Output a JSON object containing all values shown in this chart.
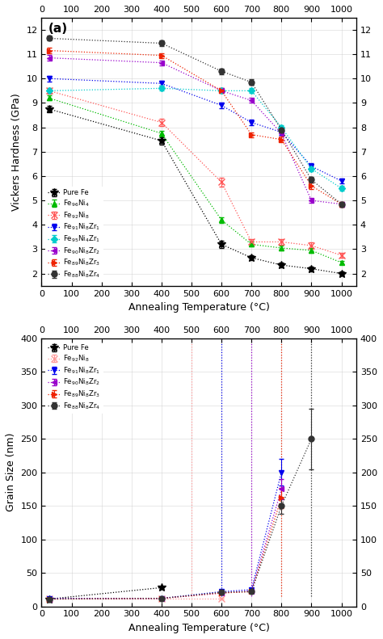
{
  "panel_a": {
    "xlabel": "Annealing Temperature (°C)",
    "ylabel": "Vickers Hardness (GPa)",
    "xlim": [
      0,
      1050
    ],
    "ylim": [
      1.5,
      12.5
    ],
    "xticks": [
      0,
      100,
      200,
      300,
      400,
      500,
      600,
      700,
      800,
      900,
      1000
    ],
    "yticks": [
      2,
      3,
      4,
      5,
      6,
      7,
      8,
      9,
      10,
      11,
      12
    ],
    "series": [
      {
        "label": "Pure Fe",
        "color": "#000000",
        "marker": "*",
        "markersize": 7,
        "x": [
          25,
          400,
          600,
          700,
          800,
          900,
          1000
        ],
        "y": [
          8.75,
          7.45,
          3.2,
          2.65,
          2.35,
          2.2,
          2.0
        ],
        "yerr": [
          0.12,
          0.15,
          0.15,
          0.1,
          0.1,
          0.1,
          0.08
        ]
      },
      {
        "label": "Fe$_{96}$Ni$_4$",
        "color": "#00bb00",
        "marker": "^",
        "markersize": 5,
        "x": [
          25,
          400,
          600,
          700,
          800,
          900,
          1000
        ],
        "y": [
          9.2,
          7.75,
          4.2,
          3.2,
          3.05,
          2.95,
          2.45
        ],
        "yerr": [
          0.1,
          0.12,
          0.12,
          0.1,
          0.1,
          0.1,
          0.08
        ]
      },
      {
        "label": "Fe$_{92}$Ni$_8$",
        "color": "#ff5555",
        "marker": "x",
        "markersize": 6,
        "x": [
          25,
          400,
          600,
          700,
          800,
          900,
          1000
        ],
        "y": [
          9.5,
          8.2,
          5.75,
          3.3,
          3.3,
          3.15,
          2.75
        ],
        "yerr": [
          0.12,
          0.15,
          0.18,
          0.12,
          0.12,
          0.12,
          0.1
        ]
      },
      {
        "label": "Fe$_{91}$Ni$_8$Zr$_1$",
        "color": "#0000ee",
        "marker": "v",
        "markersize": 5,
        "x": [
          25,
          400,
          600,
          700,
          800,
          900,
          1000
        ],
        "y": [
          10.0,
          9.8,
          8.9,
          8.2,
          7.8,
          6.4,
          5.8
        ],
        "yerr": [
          0.12,
          0.1,
          0.12,
          0.12,
          0.12,
          0.12,
          0.1
        ]
      },
      {
        "label": "Fe$_{95}$Ni$_4$Zr$_1$",
        "color": "#00cccc",
        "marker": "D",
        "markersize": 4,
        "x": [
          25,
          400,
          600,
          700,
          800,
          900,
          1000
        ],
        "y": [
          9.5,
          9.6,
          9.5,
          9.5,
          8.0,
          6.3,
          5.5
        ],
        "yerr": [
          0.1,
          0.1,
          0.1,
          0.1,
          0.1,
          0.1,
          0.1
        ]
      },
      {
        "label": "Fe$_{90}$Ni$_8$Zr$_2$",
        "color": "#9900cc",
        "marker": "<",
        "markersize": 5,
        "x": [
          25,
          400,
          600,
          700,
          800,
          900,
          1000
        ],
        "y": [
          10.85,
          10.65,
          9.5,
          9.1,
          7.75,
          5.0,
          4.85
        ],
        "yerr": [
          0.12,
          0.1,
          0.1,
          0.1,
          0.12,
          0.1,
          0.1
        ]
      },
      {
        "label": "Fe$_{89}$Ni$_8$Zr$_3$",
        "color": "#ee2200",
        "marker": ">",
        "markersize": 5,
        "x": [
          25,
          400,
          600,
          700,
          800,
          900,
          1000
        ],
        "y": [
          11.15,
          10.95,
          9.5,
          7.7,
          7.5,
          5.6,
          4.85
        ],
        "yerr": [
          0.12,
          0.1,
          0.1,
          0.1,
          0.12,
          0.12,
          0.1
        ]
      },
      {
        "label": "Fe$_{88}$Ni$_8$Zr$_4$",
        "color": "#333333",
        "marker": "o",
        "markersize": 5,
        "x": [
          25,
          400,
          600,
          700,
          800,
          900,
          1000
        ],
        "y": [
          11.65,
          11.45,
          10.3,
          9.85,
          7.9,
          5.85,
          4.85
        ],
        "yerr": [
          0.1,
          0.1,
          0.12,
          0.12,
          0.12,
          0.12,
          0.1
        ]
      }
    ]
  },
  "panel_b": {
    "xlabel": "Annealing Temperature (°C)",
    "ylabel": "Grain Size (nm)",
    "xlim": [
      0,
      1050
    ],
    "ylim": [
      0,
      400
    ],
    "xticks": [
      0,
      100,
      200,
      300,
      400,
      500,
      600,
      700,
      800,
      900,
      1000
    ],
    "yticks": [
      0,
      50,
      100,
      150,
      200,
      250,
      300,
      350,
      400
    ],
    "series": [
      {
        "label": "Pure Fe",
        "color": "#000000",
        "marker": "*",
        "markersize": 7,
        "x": [
          25,
          400
        ],
        "y": [
          11,
          28
        ],
        "yerr": [
          1,
          2
        ],
        "offscale_x": null
      },
      {
        "label": "Fe$_{92}$Ni$_8$",
        "color": "#ff9999",
        "marker": "x",
        "markersize": 6,
        "x": [
          25,
          400,
          600
        ],
        "y": [
          12,
          12,
          12
        ],
        "yerr": [
          1,
          1,
          1
        ],
        "offscale_x": 500
      },
      {
        "label": "Fe$_{91}$Ni$_8$Zr$_1$",
        "color": "#0000ee",
        "marker": "v",
        "markersize": 5,
        "x": [
          25,
          400,
          600,
          700,
          800
        ],
        "y": [
          12,
          12,
          22,
          25,
          200
        ],
        "yerr": [
          1,
          1,
          2,
          2,
          20
        ],
        "offscale_x": 600
      },
      {
        "label": "Fe$_{90}$Ni$_8$Zr$_2$",
        "color": "#9900cc",
        "marker": "<",
        "markersize": 5,
        "x": [
          25,
          400,
          600,
          700,
          800
        ],
        "y": [
          11,
          12,
          20,
          23,
          175
        ],
        "yerr": [
          1,
          1,
          2,
          2,
          15
        ],
        "offscale_x": 700
      },
      {
        "label": "Fe$_{89}$Ni$_8$Zr$_3$",
        "color": "#ee2200",
        "marker": ">",
        "markersize": 5,
        "x": [
          25,
          400,
          600,
          700,
          800
        ],
        "y": [
          11,
          12,
          20,
          22,
          162
        ],
        "yerr": [
          1,
          1,
          2,
          2,
          15
        ],
        "offscale_x": 800
      },
      {
        "label": "Fe$_{88}$Ni$_8$Zr$_4$",
        "color": "#333333",
        "marker": "o",
        "markersize": 5,
        "x": [
          25,
          400,
          600,
          700,
          800,
          900
        ],
        "y": [
          11,
          12,
          21,
          22,
          150,
          250
        ],
        "yerr": [
          1,
          1,
          2,
          2,
          12,
          45
        ],
        "offscale_x": 900
      }
    ]
  }
}
